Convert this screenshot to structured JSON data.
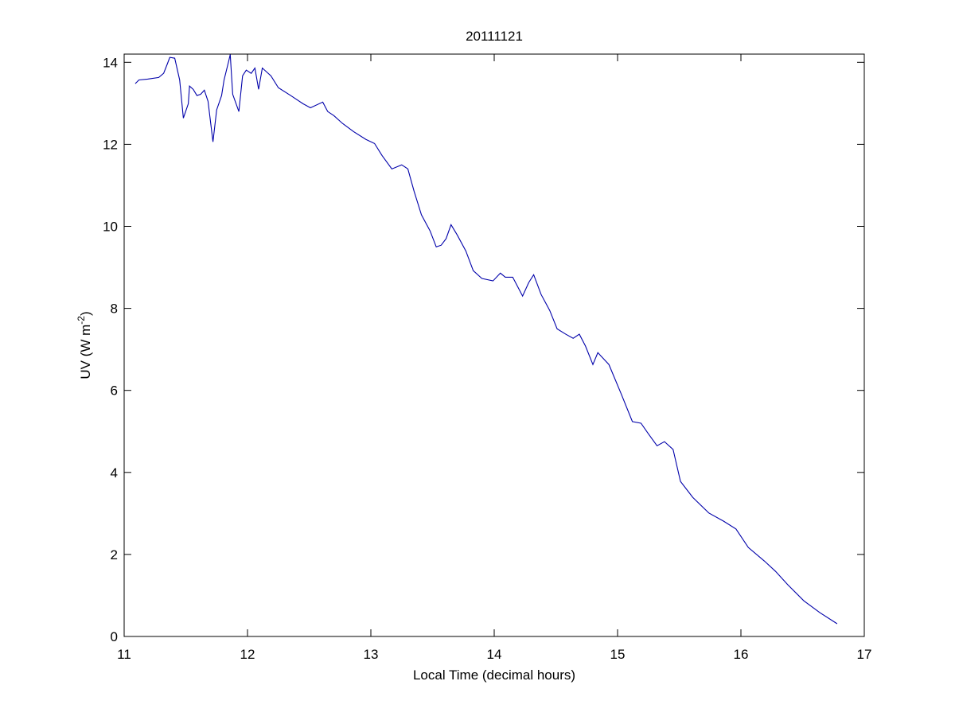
{
  "chart_data": {
    "type": "line",
    "title": "20111121",
    "xlabel": "Local Time (decimal hours)",
    "ylabel": {
      "text": "UV (W m",
      "superscript": "-2",
      "suffix": ")"
    },
    "xlim": [
      11,
      17
    ],
    "xticks": [
      11,
      12,
      13,
      14,
      15,
      16,
      17
    ],
    "ylim": [
      0,
      14.2
    ],
    "yticks": [
      0,
      2,
      4,
      6,
      8,
      10,
      12,
      14
    ],
    "grid": false,
    "series": [
      {
        "color": "#0000aa",
        "x": [
          11.09,
          11.12,
          11.19,
          11.28,
          11.32,
          11.35,
          11.37,
          11.41,
          11.45,
          11.48,
          11.52,
          11.53,
          11.56,
          11.59,
          11.62,
          11.65,
          11.68,
          11.72,
          11.75,
          11.79,
          11.81,
          11.85,
          11.86,
          11.88,
          11.93,
          11.96,
          11.99,
          12.03,
          12.06,
          12.09,
          12.12,
          12.19,
          12.25,
          12.35,
          12.45,
          12.51,
          12.61,
          12.65,
          12.7,
          12.77,
          12.86,
          12.96,
          13.03,
          13.09,
          13.17,
          13.25,
          13.3,
          13.35,
          13.41,
          13.48,
          13.53,
          13.57,
          13.61,
          13.65,
          13.7,
          13.77,
          13.83,
          13.9,
          13.99,
          14.05,
          14.09,
          14.15,
          14.19,
          14.23,
          14.28,
          14.32,
          14.38,
          14.45,
          14.51,
          14.58,
          14.64,
          14.69,
          14.74,
          14.8,
          14.84,
          14.93,
          15.03,
          15.12,
          15.19,
          15.25,
          15.32,
          15.38,
          15.45,
          15.51,
          15.61,
          15.74,
          15.86,
          15.96,
          16.06,
          16.19,
          16.28,
          16.38,
          16.51,
          16.64,
          16.78
        ],
        "values": [
          13.48,
          13.57,
          13.59,
          13.63,
          13.73,
          13.96,
          14.12,
          14.1,
          13.57,
          12.64,
          12.99,
          13.42,
          13.34,
          13.19,
          13.22,
          13.32,
          13.05,
          12.06,
          12.84,
          13.19,
          13.57,
          14.06,
          14.19,
          13.22,
          12.8,
          13.67,
          13.81,
          13.73,
          13.86,
          13.34,
          13.86,
          13.67,
          13.38,
          13.19,
          12.99,
          12.89,
          13.03,
          12.8,
          12.7,
          12.51,
          12.31,
          12.12,
          12.02,
          11.73,
          11.4,
          11.5,
          11.4,
          10.86,
          10.28,
          9.89,
          9.5,
          9.54,
          9.7,
          10.04,
          9.79,
          9.4,
          8.92,
          8.73,
          8.67,
          8.86,
          8.76,
          8.76,
          8.53,
          8.3,
          8.63,
          8.82,
          8.34,
          7.95,
          7.5,
          7.37,
          7.27,
          7.37,
          7.08,
          6.63,
          6.92,
          6.63,
          5.91,
          5.24,
          5.2,
          4.94,
          4.65,
          4.75,
          4.56,
          3.78,
          3.39,
          3.01,
          2.81,
          2.62,
          2.17,
          1.84,
          1.59,
          1.26,
          0.87,
          0.58,
          0.31
        ]
      }
    ]
  }
}
